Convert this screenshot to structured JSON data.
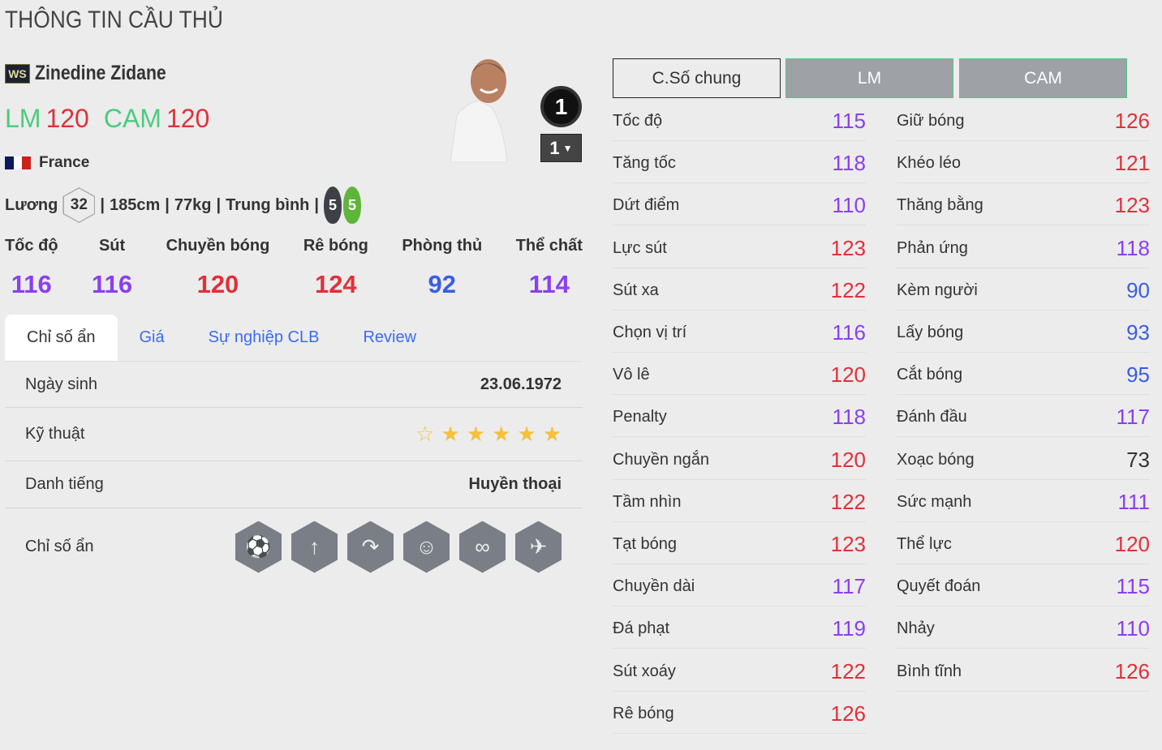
{
  "title": "THÔNG TIN CẦU THỦ",
  "player": {
    "season_badge": "WS",
    "name": "Zinedine Zidane",
    "positions": [
      {
        "pos": "LM",
        "ovr": "120"
      },
      {
        "pos": "CAM",
        "ovr": "120"
      }
    ],
    "nation": "France",
    "salary_label": "Lương",
    "salary": "32",
    "height": "185cm",
    "weight": "77kg",
    "body_type": "Trung bình",
    "weak_foot_left": "5",
    "weak_foot_right": "5",
    "rank": "1",
    "level": "1"
  },
  "main_stats": [
    {
      "label": "Tốc độ",
      "value": "116",
      "color": "#8a3ff0"
    },
    {
      "label": "Sút",
      "value": "116",
      "color": "#8a3ff0"
    },
    {
      "label": "Chuyền bóng",
      "value": "120",
      "color": "#e0313a"
    },
    {
      "label": "Rê bóng",
      "value": "124",
      "color": "#e0313a"
    },
    {
      "label": "Phòng thủ",
      "value": "92",
      "color": "#3a5ee0"
    },
    {
      "label": "Thể chất",
      "value": "114",
      "color": "#8a3ff0"
    }
  ],
  "tabs": [
    {
      "label": "Chỉ số ẩn",
      "active": true
    },
    {
      "label": "Giá"
    },
    {
      "label": "Sự nghiệp CLB"
    },
    {
      "label": "Review"
    }
  ],
  "details": {
    "birth_label": "Ngày sinh",
    "birth": "23.06.1972",
    "skill_label": "Kỹ thuật",
    "skill_stars": 5,
    "skill_stars_max": 6,
    "rep_label": "Danh tiếng",
    "rep": "Huyền thoại",
    "traits_label": "Chỉ số ẩn",
    "traits": [
      "goal-shot-icon",
      "long-shot-icon",
      "curl-pass-icon",
      "flair-head-icon",
      "dribble-path-icon",
      "power-header-icon"
    ]
  },
  "position_buttons": [
    {
      "label": "C.Số chung",
      "active": true
    },
    {
      "label": "LM"
    },
    {
      "label": "CAM"
    }
  ],
  "colors": {
    "high": "#e0313a",
    "mid": "#8a3ff0",
    "low": "#3a5ee0",
    "base": "#333333",
    "accent": "#4ccb7e"
  },
  "stats_left": [
    [
      "Tốc độ",
      "115"
    ],
    [
      "Tăng tốc",
      "118"
    ],
    [
      "Dứt điểm",
      "110"
    ],
    [
      "Lực sút",
      "123"
    ],
    [
      "Sút xa",
      "122"
    ],
    [
      "Chọn vị trí",
      "116"
    ],
    [
      "Vô lê",
      "120"
    ],
    [
      "Penalty",
      "118"
    ],
    [
      "Chuyền ngắn",
      "120"
    ],
    [
      "Tầm nhìn",
      "122"
    ],
    [
      "Tạt bóng",
      "123"
    ],
    [
      "Chuyền dài",
      "117"
    ],
    [
      "Đá phạt",
      "119"
    ],
    [
      "Sút xoáy",
      "122"
    ],
    [
      "Rê bóng",
      "126"
    ]
  ],
  "stats_right": [
    [
      "Giữ bóng",
      "126"
    ],
    [
      "Khéo léo",
      "121"
    ],
    [
      "Thăng bằng",
      "123"
    ],
    [
      "Phản ứng",
      "118"
    ],
    [
      "Kèm người",
      "90"
    ],
    [
      "Lấy bóng",
      "93"
    ],
    [
      "Cắt bóng",
      "95"
    ],
    [
      "Đánh đầu",
      "117"
    ],
    [
      "Xoạc bóng",
      "73"
    ],
    [
      "Sức mạnh",
      "111"
    ],
    [
      "Thể lực",
      "120"
    ],
    [
      "Quyết đoán",
      "115"
    ],
    [
      "Nhảy",
      "110"
    ],
    [
      "Bình tĩnh",
      "126"
    ]
  ]
}
